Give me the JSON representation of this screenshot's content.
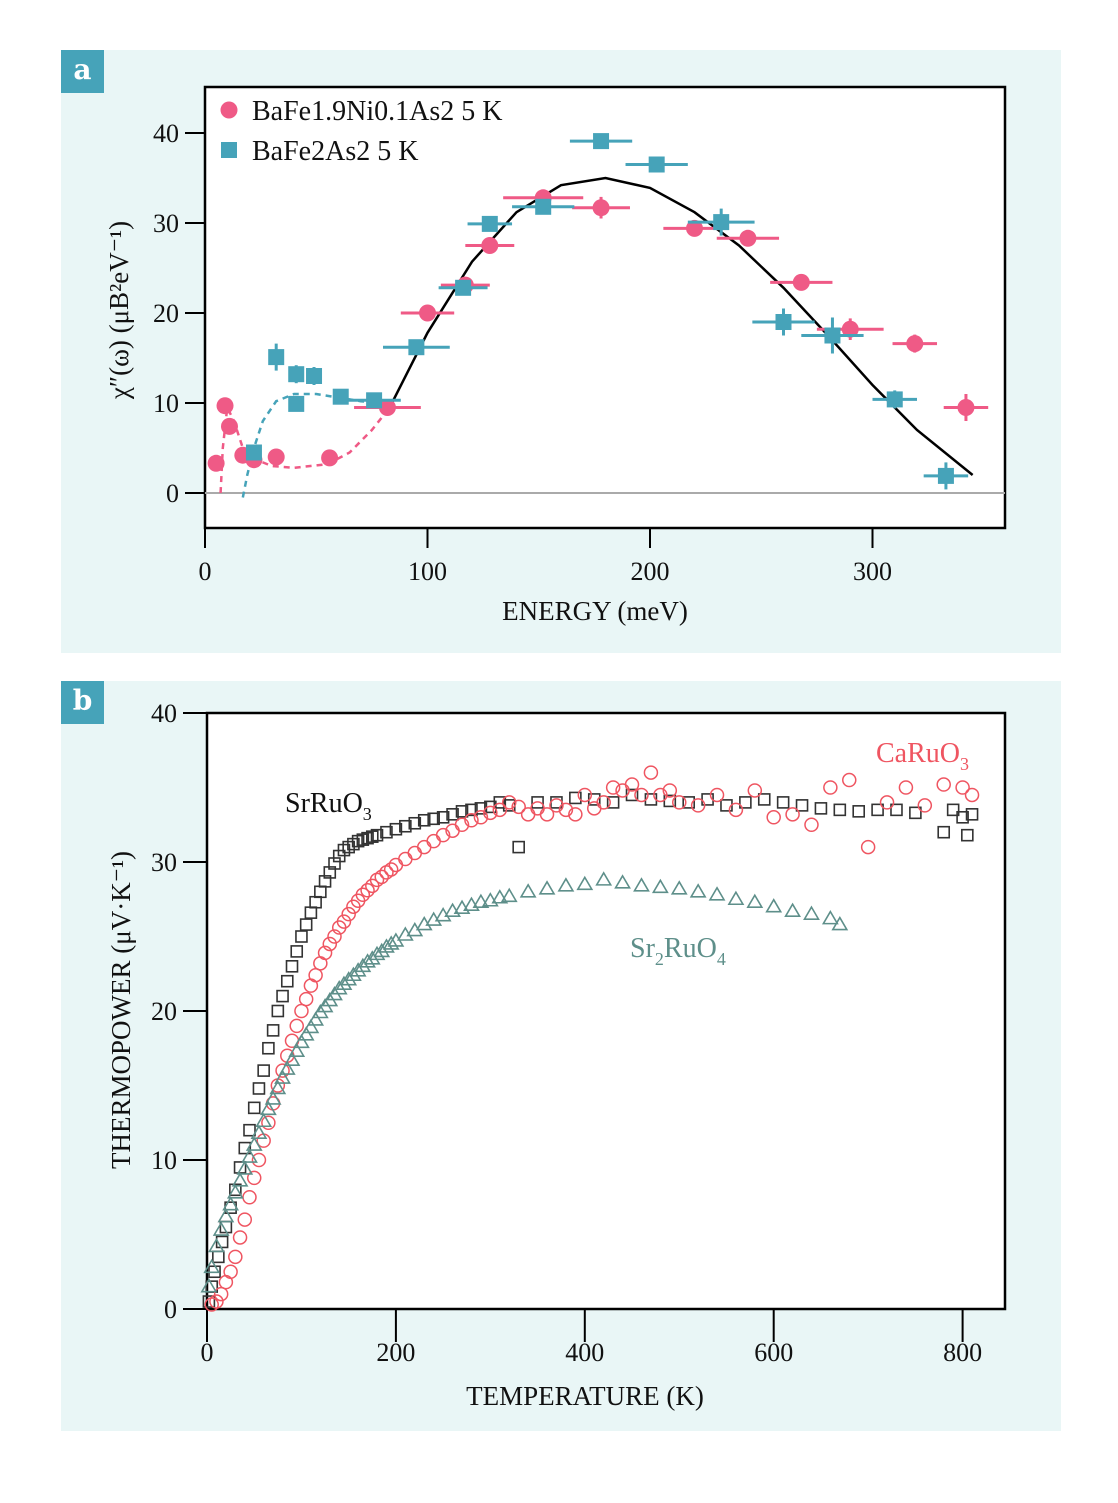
{
  "panels": {
    "a": {
      "label": "a"
    },
    "b": {
      "label": "b"
    }
  },
  "colors": {
    "pink": "#ef5a86",
    "teal": "#46a3b9",
    "panel_bg": "#e9f6f6",
    "srruo3": "#333333",
    "caruo3": "#ef5561",
    "sr2ruo4": "#5e8f8a"
  },
  "chart_data": [
    {
      "type": "scatter",
      "title": "",
      "xlabel": "ENERGY (meV)",
      "ylabel": "χ″(ω) (μB²eV⁻¹)",
      "xlim": [
        0,
        360
      ],
      "ylim": [
        -4,
        45
      ],
      "xticks": [
        0,
        100,
        200,
        300
      ],
      "yticks": [
        0,
        10,
        20,
        30,
        40
      ],
      "legend_position": "top-left",
      "series": [
        {
          "name": "BaFe1.9Ni0.1As2 5 K",
          "marker": "circle",
          "color": "#ef5a86",
          "points": [
            {
              "x": 5,
              "y": 3.3,
              "xerr": 0,
              "yerr": 0
            },
            {
              "x": 9,
              "y": 9.7,
              "xerr": 0,
              "yerr": 0
            },
            {
              "x": 11,
              "y": 7.4,
              "xerr": 0,
              "yerr": 0
            },
            {
              "x": 17,
              "y": 4.2,
              "xerr": 0,
              "yerr": 0
            },
            {
              "x": 22,
              "y": 3.7,
              "xerr": 0,
              "yerr": 0
            },
            {
              "x": 32,
              "y": 4.0,
              "xerr": 0,
              "yerr": 0
            },
            {
              "x": 56,
              "y": 3.9,
              "xerr": 0,
              "yerr": 0
            },
            {
              "x": 82,
              "y": 9.5,
              "xerr": 15,
              "yerr": 0
            },
            {
              "x": 100,
              "y": 20.0,
              "xerr": 12,
              "yerr": 0
            },
            {
              "x": 117,
              "y": 23.1,
              "xerr": 11,
              "yerr": 0
            },
            {
              "x": 128,
              "y": 27.5,
              "xerr": 11,
              "yerr": 0
            },
            {
              "x": 152,
              "y": 32.8,
              "xerr": 18,
              "yerr": 0.8
            },
            {
              "x": 178,
              "y": 31.7,
              "xerr": 13,
              "yerr": 1.2
            },
            {
              "x": 220,
              "y": 29.4,
              "xerr": 14,
              "yerr": 0
            },
            {
              "x": 244,
              "y": 28.3,
              "xerr": 14,
              "yerr": 0
            },
            {
              "x": 268,
              "y": 23.4,
              "xerr": 14,
              "yerr": 0.8
            },
            {
              "x": 290,
              "y": 18.2,
              "xerr": 15,
              "yerr": 1.2
            },
            {
              "x": 319,
              "y": 16.6,
              "xerr": 10,
              "yerr": 1.0
            },
            {
              "x": 342,
              "y": 9.5,
              "xerr": 10,
              "yerr": 1.5
            }
          ]
        },
        {
          "name": "BaFe2As2 5 K",
          "marker": "square",
          "color": "#46a3b9",
          "points": [
            {
              "x": 22,
              "y": 4.5,
              "xerr": 0,
              "yerr": 0
            },
            {
              "x": 32,
              "y": 15.1,
              "xerr": 0,
              "yerr": 1.5
            },
            {
              "x": 41,
              "y": 13.2,
              "xerr": 0,
              "yerr": 1.0
            },
            {
              "x": 49,
              "y": 13.0,
              "xerr": 0,
              "yerr": 1.0
            },
            {
              "x": 41,
              "y": 9.9,
              "xerr": 0,
              "yerr": 0
            },
            {
              "x": 61,
              "y": 10.7,
              "xerr": 0,
              "yerr": 0
            },
            {
              "x": 76,
              "y": 10.3,
              "xerr": 12,
              "yerr": 0
            },
            {
              "x": 95,
              "y": 16.2,
              "xerr": 15,
              "yerr": 0
            },
            {
              "x": 116,
              "y": 22.8,
              "xerr": 11,
              "yerr": 0
            },
            {
              "x": 128,
              "y": 29.9,
              "xerr": 10,
              "yerr": 0
            },
            {
              "x": 152,
              "y": 31.8,
              "xerr": 14,
              "yerr": 0
            },
            {
              "x": 178,
              "y": 39.1,
              "xerr": 14,
              "yerr": 0
            },
            {
              "x": 203,
              "y": 36.5,
              "xerr": 14,
              "yerr": 0.8
            },
            {
              "x": 232,
              "y": 30.1,
              "xerr": 15,
              "yerr": 1.5
            },
            {
              "x": 260,
              "y": 19.0,
              "xerr": 14,
              "yerr": 1.5
            },
            {
              "x": 282,
              "y": 17.5,
              "xerr": 14,
              "yerr": 2.0
            },
            {
              "x": 310,
              "y": 10.4,
              "xerr": 10,
              "yerr": 1.0
            },
            {
              "x": 333,
              "y": 1.9,
              "xerr": 10,
              "yerr": 1.5
            }
          ]
        }
      ],
      "fit_curves": [
        {
          "name": "fit",
          "color": "#000000",
          "style": "solid",
          "x": [
            83,
            100,
            120,
            140,
            160,
            180,
            200,
            220,
            240,
            260,
            280,
            300,
            320,
            345
          ],
          "y": [
            9.5,
            17.8,
            25.7,
            31.2,
            34.2,
            35.0,
            33.9,
            31.2,
            27.5,
            22.8,
            17.5,
            12.0,
            7.0,
            2.0
          ]
        },
        {
          "name": "pink-dashed",
          "color": "#ef5a86",
          "style": "dashed",
          "x": [
            7,
            8,
            10,
            13,
            17,
            22,
            30,
            40,
            55,
            65,
            75,
            83
          ],
          "y": [
            0,
            5,
            9.5,
            8.0,
            5.0,
            3.8,
            3.0,
            2.8,
            3.2,
            4.5,
            7.0,
            9.5
          ]
        },
        {
          "name": "teal-dashed",
          "color": "#46a3b9",
          "style": "dashed",
          "x": [
            17,
            19,
            22,
            26,
            32,
            40,
            50,
            60,
            70,
            78
          ],
          "y": [
            -0.5,
            2.0,
            5.0,
            8.0,
            10.2,
            11.0,
            11.0,
            10.6,
            10.2,
            10.0
          ]
        }
      ]
    },
    {
      "type": "scatter",
      "title": "",
      "xlabel": "TEMPERATURE (K)",
      "ylabel": "THERMOPOWER (μV·K⁻¹)",
      "xlim": [
        0,
        840
      ],
      "ylim": [
        0,
        40
      ],
      "xticks": [
        0,
        200,
        400,
        600,
        800
      ],
      "yticks": [
        0,
        10,
        20,
        30,
        40
      ],
      "annotations": [
        {
          "text": "SrRuO",
          "sub": "3",
          "color": "#111111"
        },
        {
          "text": "CaRuO",
          "sub": "3",
          "color": "#ef5561"
        },
        {
          "text": "Sr",
          "sub": "2",
          "text2": "RuO",
          "sub2": "4",
          "color": "#5e8f8a"
        }
      ],
      "series": [
        {
          "name": "SrRuO3",
          "marker": "open-square",
          "color": "#333333",
          "x": [
            2,
            5,
            8,
            12,
            16,
            20,
            25,
            30,
            35,
            40,
            45,
            50,
            55,
            60,
            65,
            70,
            75,
            80,
            85,
            90,
            95,
            100,
            105,
            110,
            115,
            120,
            125,
            130,
            135,
            140,
            145,
            150,
            155,
            160,
            165,
            170,
            175,
            180,
            190,
            200,
            210,
            220,
            230,
            240,
            250,
            260,
            270,
            280,
            290,
            300,
            310,
            320,
            330,
            350,
            370,
            390,
            410,
            430,
            450,
            470,
            490,
            510,
            530,
            550,
            570,
            590,
            610,
            630,
            650,
            670,
            690,
            710,
            730,
            750,
            780,
            790,
            800,
            805,
            810
          ],
          "y": [
            0.5,
            1.5,
            2.5,
            3.5,
            4.5,
            5.5,
            6.8,
            8.0,
            9.5,
            10.8,
            12.0,
            13.5,
            14.8,
            16.0,
            17.5,
            18.7,
            20.0,
            21.0,
            22.0,
            23.0,
            24.0,
            25.0,
            25.8,
            26.6,
            27.3,
            28.0,
            28.7,
            29.3,
            29.9,
            30.4,
            30.8,
            31.0,
            31.2,
            31.4,
            31.5,
            31.6,
            31.7,
            31.8,
            32.0,
            32.2,
            32.4,
            32.6,
            32.8,
            32.9,
            33.0,
            33.2,
            33.4,
            33.5,
            33.6,
            33.7,
            34.0,
            33.8,
            31.0,
            34.0,
            34.0,
            34.3,
            34.2,
            34.0,
            34.5,
            34.2,
            34.1,
            34.0,
            34.2,
            33.8,
            34.0,
            34.2,
            34.0,
            33.8,
            33.6,
            33.5,
            33.4,
            33.5,
            33.5,
            33.3,
            32.0,
            33.5,
            33.0,
            31.8,
            33.2
          ]
        },
        {
          "name": "CaRuO3",
          "marker": "open-circle",
          "color": "#ef5561",
          "x": [
            5,
            10,
            15,
            20,
            25,
            30,
            35,
            40,
            45,
            50,
            55,
            60,
            65,
            70,
            75,
            80,
            85,
            90,
            95,
            100,
            105,
            110,
            115,
            120,
            125,
            130,
            135,
            140,
            145,
            150,
            155,
            160,
            165,
            170,
            175,
            180,
            185,
            190,
            195,
            200,
            210,
            220,
            230,
            240,
            250,
            260,
            270,
            280,
            290,
            300,
            310,
            320,
            330,
            340,
            350,
            360,
            370,
            380,
            390,
            400,
            410,
            420,
            430,
            440,
            450,
            460,
            470,
            480,
            490,
            500,
            520,
            540,
            560,
            580,
            600,
            620,
            640,
            660,
            680,
            700,
            720,
            740,
            760,
            780,
            800,
            810
          ],
          "y": [
            0.3,
            0.5,
            1.0,
            1.8,
            2.5,
            3.5,
            4.8,
            6.0,
            7.5,
            8.8,
            10.0,
            11.3,
            12.5,
            13.8,
            15.0,
            16.0,
            17.0,
            18.0,
            19.0,
            20.0,
            20.8,
            21.7,
            22.4,
            23.2,
            23.9,
            24.5,
            25.0,
            25.6,
            26.0,
            26.5,
            27.0,
            27.4,
            27.8,
            28.1,
            28.4,
            28.8,
            29.0,
            29.3,
            29.5,
            29.8,
            30.2,
            30.6,
            31.0,
            31.4,
            31.8,
            32.1,
            32.5,
            32.8,
            33.0,
            33.3,
            33.5,
            34.0,
            33.7,
            33.2,
            33.6,
            33.2,
            33.8,
            33.5,
            33.2,
            34.5,
            33.6,
            34.0,
            35.0,
            34.8,
            35.2,
            34.5,
            36.0,
            34.5,
            34.8,
            34.0,
            33.8,
            34.5,
            33.5,
            34.8,
            33.0,
            33.2,
            32.5,
            35.0,
            35.5,
            31.0,
            34.0,
            35.0,
            33.8,
            35.2,
            35.0,
            34.5
          ]
        },
        {
          "name": "Sr2RuO4",
          "marker": "open-triangle",
          "color": "#5e8f8a",
          "x": [
            2,
            5,
            10,
            15,
            20,
            25,
            30,
            35,
            40,
            45,
            50,
            55,
            60,
            65,
            70,
            75,
            80,
            85,
            90,
            95,
            100,
            105,
            110,
            115,
            120,
            125,
            130,
            135,
            140,
            145,
            150,
            155,
            160,
            165,
            170,
            175,
            180,
            185,
            190,
            195,
            200,
            210,
            220,
            230,
            240,
            250,
            260,
            270,
            280,
            290,
            300,
            310,
            320,
            340,
            360,
            380,
            400,
            420,
            440,
            460,
            480,
            500,
            520,
            540,
            560,
            580,
            600,
            620,
            640,
            660,
            670
          ],
          "y": [
            1.5,
            2.8,
            4.2,
            5.3,
            6.2,
            7.0,
            7.8,
            8.6,
            9.4,
            10.2,
            11.0,
            11.8,
            12.6,
            13.4,
            14.1,
            14.8,
            15.5,
            16.1,
            16.7,
            17.3,
            17.9,
            18.4,
            18.9,
            19.4,
            19.9,
            20.3,
            20.7,
            21.1,
            21.5,
            21.8,
            22.1,
            22.4,
            22.7,
            23.0,
            23.3,
            23.5,
            23.8,
            24.0,
            24.3,
            24.5,
            24.7,
            25.1,
            25.4,
            25.8,
            26.1,
            26.4,
            26.7,
            26.9,
            27.1,
            27.3,
            27.4,
            27.6,
            27.7,
            28.0,
            28.2,
            28.4,
            28.5,
            28.8,
            28.6,
            28.4,
            28.3,
            28.2,
            28.0,
            27.8,
            27.5,
            27.3,
            27.0,
            26.7,
            26.5,
            26.2,
            25.8
          ]
        }
      ]
    }
  ]
}
